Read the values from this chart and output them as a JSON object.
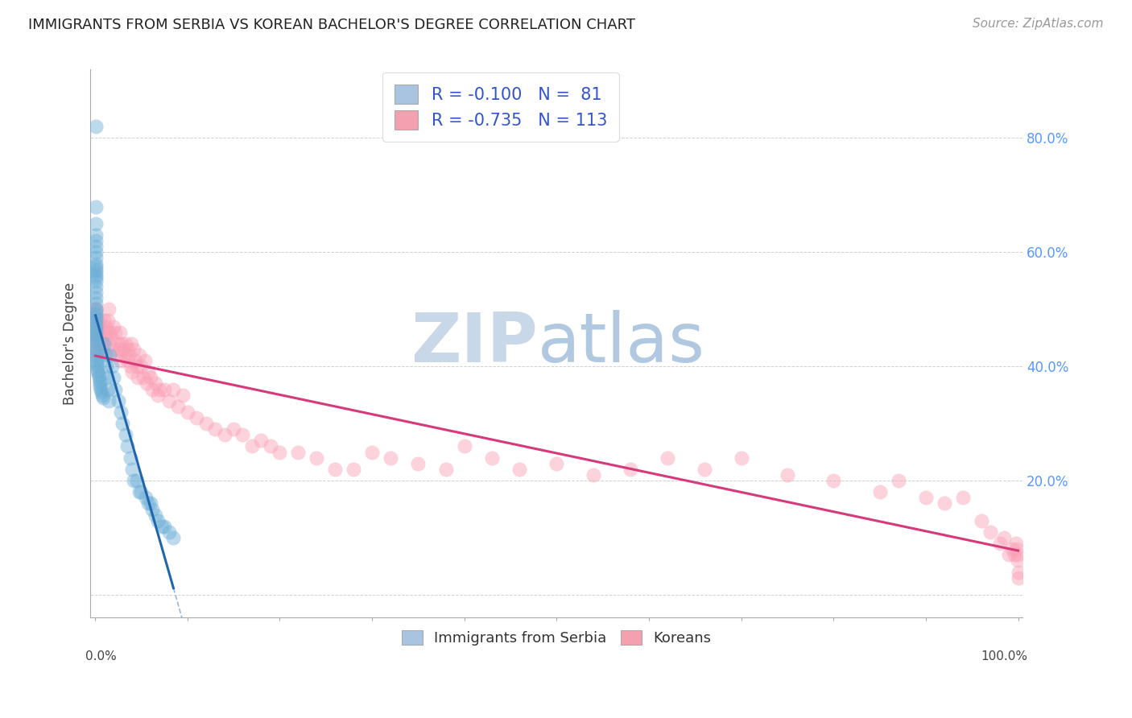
{
  "title": "IMMIGRANTS FROM SERBIA VS KOREAN BACHELOR'S DEGREE CORRELATION CHART",
  "source": "Source: ZipAtlas.com",
  "ylabel": "Bachelor's Degree",
  "right_yticks": [
    "80.0%",
    "60.0%",
    "40.0%",
    "20.0%"
  ],
  "right_ytick_vals": [
    0.8,
    0.6,
    0.4,
    0.2
  ],
  "legend_color1": "#a8c4e0",
  "legend_color2": "#f4a0b0",
  "scatter_color_serbia": "#6baed6",
  "scatter_color_korea": "#fa9fb5",
  "trendline_color_serbia": "#2166ac",
  "trendline_color_korea": "#d63a7a",
  "trendline_dash_color": "#8ab0d8",
  "watermark_zip": "ZIP",
  "watermark_atlas": "atlas",
  "watermark_color_zip": "#c8d8e8",
  "watermark_color_atlas": "#b0c8e0",
  "legend_entry1_R": "-0.100",
  "legend_entry1_N": "81",
  "legend_entry2_R": "-0.735",
  "legend_entry2_N": "113",
  "serbia_x": [
    0.0005,
    0.0005,
    0.0005,
    0.0005,
    0.0005,
    0.0005,
    0.0005,
    0.0005,
    0.0005,
    0.0005,
    0.0005,
    0.0005,
    0.0005,
    0.0005,
    0.0005,
    0.0005,
    0.0005,
    0.0005,
    0.0005,
    0.0005,
    0.0005,
    0.0005,
    0.0005,
    0.0005,
    0.0005,
    0.0008,
    0.0008,
    0.0008,
    0.001,
    0.001,
    0.001,
    0.001,
    0.001,
    0.0015,
    0.0015,
    0.002,
    0.002,
    0.002,
    0.003,
    0.003,
    0.003,
    0.004,
    0.004,
    0.005,
    0.005,
    0.005,
    0.006,
    0.007,
    0.008,
    0.009,
    0.01,
    0.011,
    0.012,
    0.013,
    0.014,
    0.015,
    0.016,
    0.018,
    0.02,
    0.022,
    0.025,
    0.028,
    0.03,
    0.033,
    0.035,
    0.038,
    0.04,
    0.042,
    0.045,
    0.048,
    0.05,
    0.055,
    0.058,
    0.06,
    0.062,
    0.065,
    0.068,
    0.072,
    0.075,
    0.08,
    0.085
  ],
  "serbia_y": [
    0.82,
    0.68,
    0.65,
    0.63,
    0.62,
    0.61,
    0.6,
    0.59,
    0.58,
    0.575,
    0.57,
    0.565,
    0.56,
    0.555,
    0.55,
    0.54,
    0.53,
    0.52,
    0.51,
    0.5,
    0.495,
    0.49,
    0.485,
    0.48,
    0.475,
    0.47,
    0.465,
    0.46,
    0.455,
    0.45,
    0.445,
    0.44,
    0.43,
    0.425,
    0.42,
    0.415,
    0.41,
    0.405,
    0.4,
    0.395,
    0.39,
    0.385,
    0.38,
    0.375,
    0.37,
    0.365,
    0.36,
    0.355,
    0.35,
    0.345,
    0.44,
    0.42,
    0.4,
    0.38,
    0.36,
    0.34,
    0.42,
    0.4,
    0.38,
    0.36,
    0.34,
    0.32,
    0.3,
    0.28,
    0.26,
    0.24,
    0.22,
    0.2,
    0.2,
    0.18,
    0.18,
    0.17,
    0.16,
    0.16,
    0.15,
    0.14,
    0.13,
    0.12,
    0.12,
    0.11,
    0.1
  ],
  "korea_x": [
    0.0005,
    0.0005,
    0.0005,
    0.0008,
    0.001,
    0.001,
    0.001,
    0.002,
    0.002,
    0.003,
    0.003,
    0.004,
    0.005,
    0.005,
    0.006,
    0.007,
    0.008,
    0.009,
    0.01,
    0.011,
    0.012,
    0.013,
    0.014,
    0.015,
    0.016,
    0.017,
    0.018,
    0.019,
    0.02,
    0.022,
    0.023,
    0.025,
    0.026,
    0.027,
    0.028,
    0.029,
    0.03,
    0.032,
    0.033,
    0.035,
    0.036,
    0.037,
    0.038,
    0.039,
    0.04,
    0.042,
    0.044,
    0.045,
    0.046,
    0.048,
    0.05,
    0.052,
    0.054,
    0.056,
    0.058,
    0.06,
    0.062,
    0.065,
    0.068,
    0.07,
    0.075,
    0.08,
    0.085,
    0.09,
    0.095,
    0.1,
    0.11,
    0.12,
    0.13,
    0.14,
    0.15,
    0.16,
    0.17,
    0.18,
    0.19,
    0.2,
    0.22,
    0.24,
    0.26,
    0.28,
    0.3,
    0.32,
    0.35,
    0.38,
    0.4,
    0.43,
    0.46,
    0.5,
    0.54,
    0.58,
    0.62,
    0.66,
    0.7,
    0.75,
    0.8,
    0.85,
    0.87,
    0.9,
    0.92,
    0.94,
    0.96,
    0.97,
    0.98,
    0.985,
    0.99,
    0.993,
    0.996,
    0.998,
    0.999,
    0.9995,
    0.9998,
    0.9999,
    0.9999
  ],
  "korea_y": [
    0.5,
    0.46,
    0.44,
    0.48,
    0.47,
    0.5,
    0.45,
    0.48,
    0.44,
    0.46,
    0.43,
    0.46,
    0.48,
    0.44,
    0.47,
    0.45,
    0.46,
    0.43,
    0.48,
    0.45,
    0.47,
    0.46,
    0.48,
    0.5,
    0.44,
    0.46,
    0.45,
    0.43,
    0.47,
    0.46,
    0.42,
    0.44,
    0.43,
    0.46,
    0.41,
    0.44,
    0.43,
    0.42,
    0.44,
    0.41,
    0.43,
    0.42,
    0.4,
    0.44,
    0.39,
    0.43,
    0.41,
    0.4,
    0.38,
    0.42,
    0.4,
    0.38,
    0.41,
    0.37,
    0.39,
    0.38,
    0.36,
    0.37,
    0.35,
    0.36,
    0.36,
    0.34,
    0.36,
    0.33,
    0.35,
    0.32,
    0.31,
    0.3,
    0.29,
    0.28,
    0.29,
    0.28,
    0.26,
    0.27,
    0.26,
    0.25,
    0.25,
    0.24,
    0.22,
    0.22,
    0.25,
    0.24,
    0.23,
    0.22,
    0.26,
    0.24,
    0.22,
    0.23,
    0.21,
    0.22,
    0.24,
    0.22,
    0.24,
    0.21,
    0.2,
    0.18,
    0.2,
    0.17,
    0.16,
    0.17,
    0.13,
    0.11,
    0.09,
    0.1,
    0.07,
    0.08,
    0.07,
    0.09,
    0.08,
    0.07,
    0.06,
    0.04,
    0.03
  ],
  "xlim": [
    -0.005,
    1.005
  ],
  "ylim": [
    -0.04,
    0.92
  ],
  "background_color": "#ffffff"
}
